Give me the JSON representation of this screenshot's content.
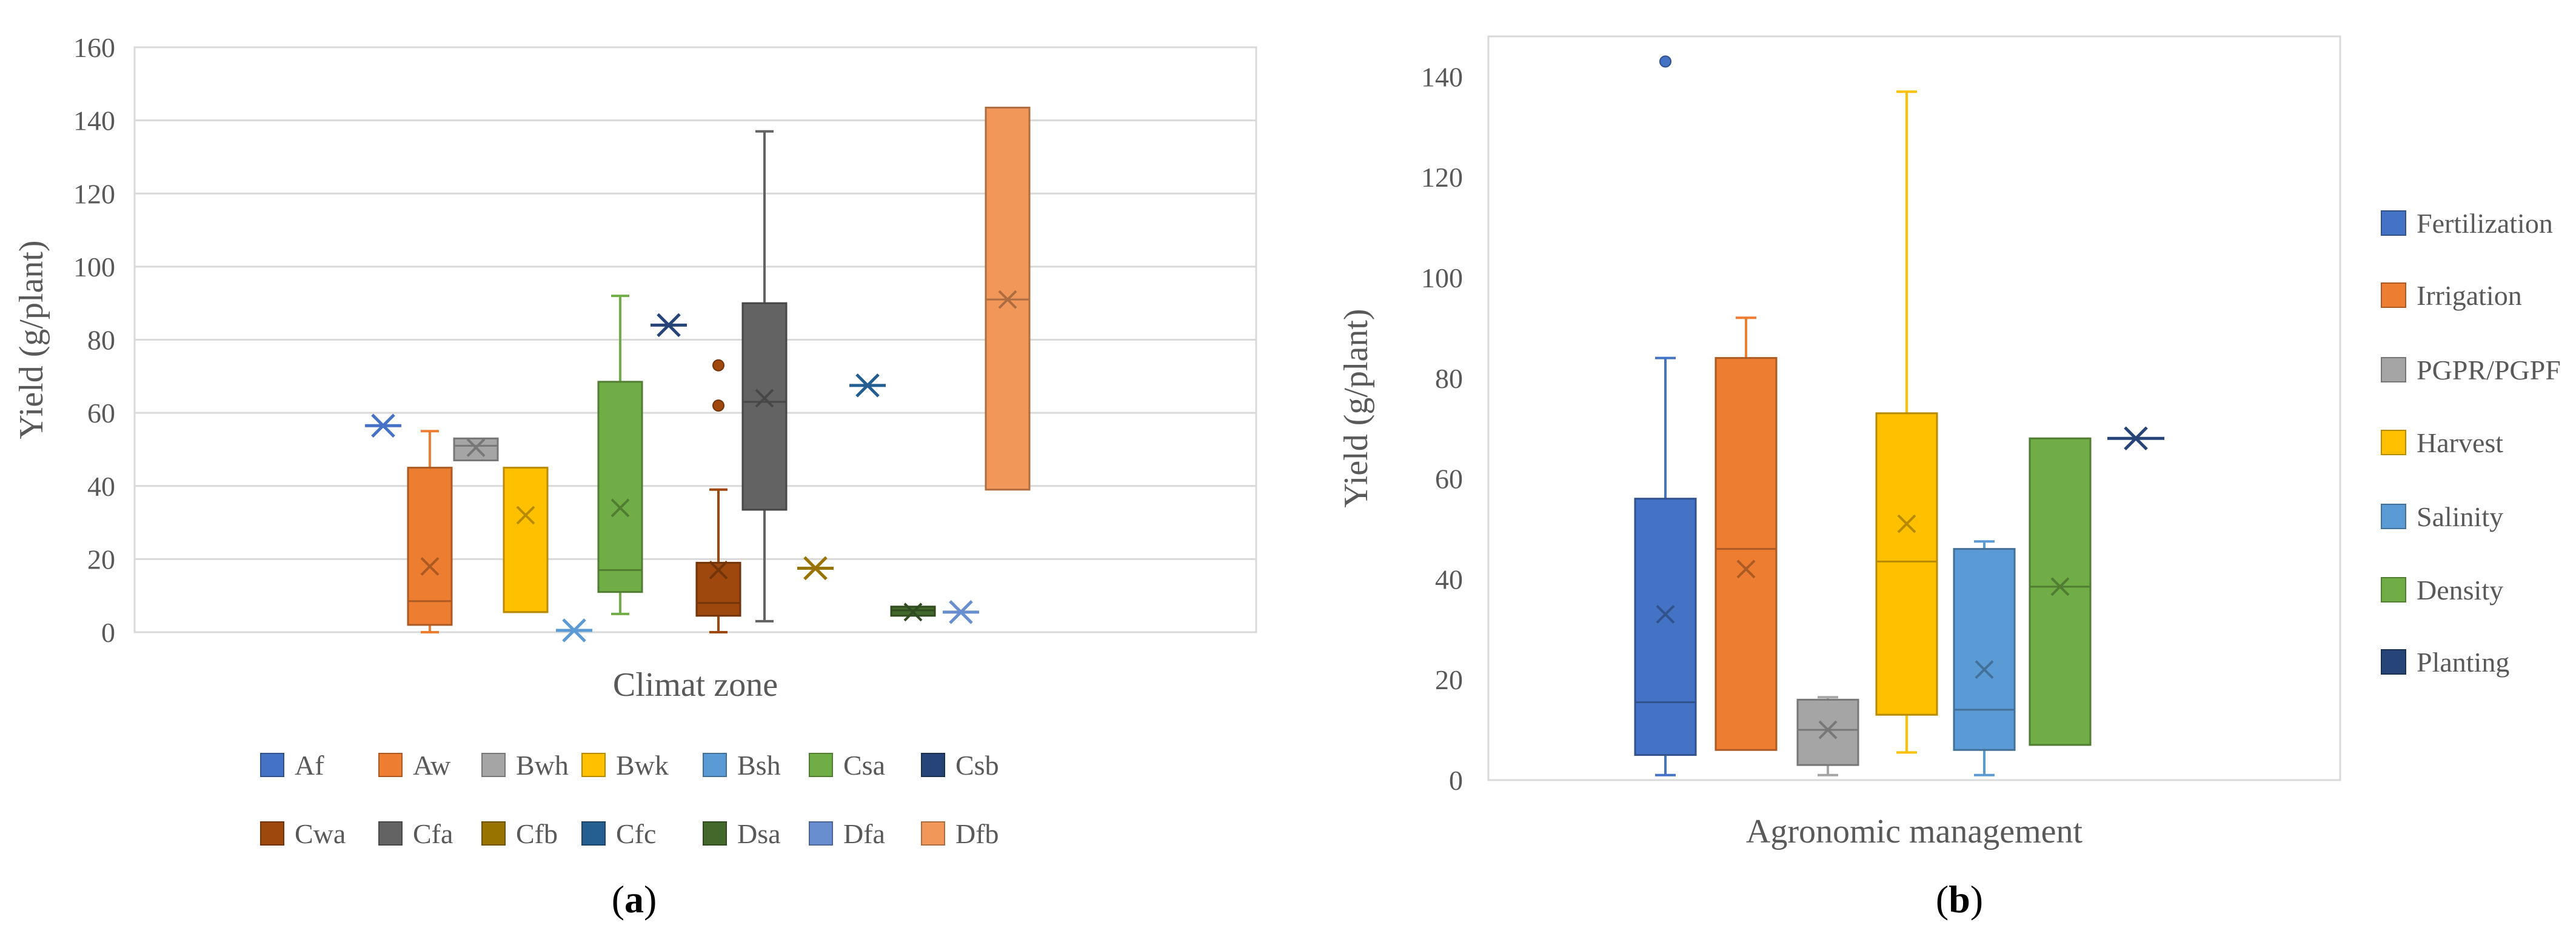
{
  "colors": {
    "Af": "#4472C4",
    "Aw": "#ED7D31",
    "Bwh": "#A5A5A5",
    "Bwk": "#FFC000",
    "Bsh": "#5B9BD5",
    "Csa": "#70AD47",
    "Csb": "#264478",
    "Cwa": "#9E480E",
    "Cfa": "#636363",
    "Cfb": "#997300",
    "Cfc": "#255E91",
    "Dsa": "#43682B",
    "Dfa": "#698ED0",
    "Dfb": "#F1975A",
    "Fertilization": "#4472C4",
    "Irrigation": "#ED7D31",
    "PGPR/PGPF": "#A5A5A5",
    "Harvest": "#FFC000",
    "Salinity": "#5B9BD5",
    "Density": "#70AD47",
    "Planting": "#264478"
  },
  "chart_data": [
    {
      "type": "box",
      "panel_label": "a",
      "xlabel": "Climat zone",
      "ylabel": "Yield (g/plant)",
      "ylim": [
        0,
        160
      ],
      "yticks": [
        0,
        20,
        40,
        60,
        80,
        100,
        120,
        140,
        160
      ],
      "gridlines": true,
      "legend": {
        "position": "bottom",
        "rows": [
          [
            "Af",
            "Aw",
            "Bwh",
            "Bwk",
            "Bsh",
            "Csa",
            "Csb"
          ],
          [
            "Cwa",
            "Cfa",
            "Cfb",
            "Cfc",
            "Dsa",
            "Dfa",
            "Dfb"
          ]
        ]
      },
      "series": [
        {
          "name": "Af",
          "mean": 56.5
        },
        {
          "name": "Aw",
          "min": 0,
          "q1": 2,
          "median": 8.5,
          "q3": 45,
          "max": 55,
          "mean": 18
        },
        {
          "name": "Bwh",
          "min": 47,
          "q1": 47,
          "median": 51,
          "q3": 53,
          "max": 53,
          "mean": 50.5
        },
        {
          "name": "Bwk",
          "min": 5.5,
          "q1": 5.5,
          "median": 5.5,
          "q3": 45,
          "max": 45,
          "mean": 32
        },
        {
          "name": "Bsh",
          "mean": 0.5
        },
        {
          "name": "Csa",
          "min": 5,
          "q1": 11,
          "median": 17,
          "q3": 68.5,
          "max": 92,
          "mean": 34
        },
        {
          "name": "Csb",
          "mean": 84
        },
        {
          "name": "Cwa",
          "min": 0,
          "q1": 4.5,
          "median": 8,
          "q3": 19,
          "max": 39,
          "mean": 17,
          "outliers": [
            73,
            62
          ]
        },
        {
          "name": "Cfa",
          "min": 3,
          "q1": 33.5,
          "median": 63,
          "q3": 90,
          "max": 137,
          "mean": 64
        },
        {
          "name": "Cfb",
          "mean": 17.5
        },
        {
          "name": "Cfc",
          "mean": 67.5
        },
        {
          "name": "Dsa",
          "min": 4.5,
          "q1": 4.5,
          "median": 6,
          "q3": 7,
          "max": 7,
          "mean": 5.5
        },
        {
          "name": "Dfa",
          "mean": 5.5
        },
        {
          "name": "Dfb",
          "min": 39,
          "q1": 39,
          "median": 91,
          "q3": 143.5,
          "max": 143.5,
          "mean": 91
        }
      ]
    },
    {
      "type": "box",
      "panel_label": "b",
      "xlabel": "Agronomic management",
      "ylabel": "Yield (g/plant)",
      "ylim": [
        0,
        148
      ],
      "yticks": [
        0,
        20,
        40,
        60,
        80,
        100,
        120,
        140
      ],
      "gridlines": false,
      "legend": {
        "position": "right",
        "entries": [
          "Fertilization",
          "Irrigation",
          "PGPR/PGPF",
          "Harvest",
          "Salinity",
          "Density",
          "Planting"
        ]
      },
      "series": [
        {
          "name": "Fertilization",
          "min": 1,
          "q1": 5,
          "median": 15.5,
          "q3": 56,
          "max": 84,
          "mean": 33,
          "outliers": [
            143
          ]
        },
        {
          "name": "Irrigation",
          "min": 6,
          "q1": 6,
          "median": 46,
          "q3": 84,
          "max": 92,
          "mean": 42
        },
        {
          "name": "PGPR/PGPF",
          "min": 1,
          "q1": 3,
          "median": 10,
          "q3": 16,
          "max": 16.5,
          "mean": 10
        },
        {
          "name": "Harvest",
          "min": 5.5,
          "q1": 13,
          "median": 43.5,
          "q3": 73,
          "max": 137,
          "mean": 51
        },
        {
          "name": "Salinity",
          "min": 1,
          "q1": 6,
          "median": 14,
          "q3": 46,
          "max": 47.5,
          "mean": 22
        },
        {
          "name": "Density",
          "min": 7,
          "q1": 7,
          "median": 38.5,
          "q3": 68,
          "max": 68,
          "mean": 38.5
        },
        {
          "name": "Planting",
          "mean": 68
        }
      ]
    }
  ]
}
